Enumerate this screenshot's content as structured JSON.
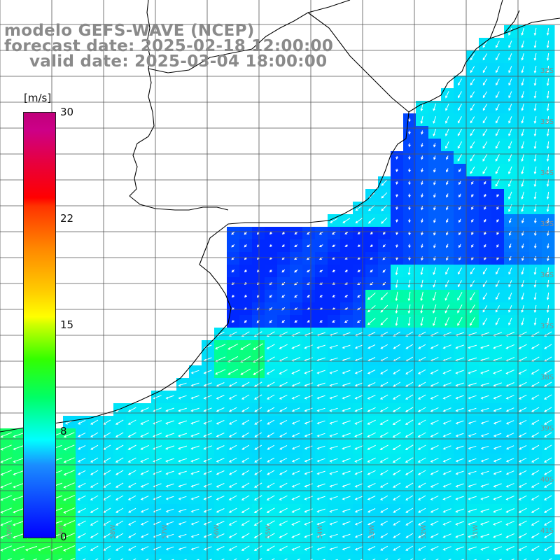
{
  "title": {
    "line1": "modelo GEFS-WAVE (NCEP)",
    "line2": "forecast date: 2025-02-18 12:00:00",
    "line3": "valid date: 2025-03-04 18:00:00"
  },
  "legend": {
    "unit": "[m/s]",
    "ticks": [
      "30",
      "22",
      "15",
      "8",
      "0"
    ],
    "tick_values": [
      30,
      22,
      15,
      8,
      0
    ]
  },
  "axes": {
    "lat_labels": [
      "32S",
      "33S",
      "34S",
      "35S",
      "36S",
      "37S",
      "38S",
      "39S",
      "40S",
      "41S"
    ],
    "lon_labels": [
      "60W",
      "59W",
      "58W",
      "57W",
      "56W",
      "55W",
      "54W",
      "53W",
      "52W",
      "51W"
    ]
  },
  "colors": {
    "land": "#ffffff",
    "coast": "#000000",
    "grid": "#555555",
    "arrows": "#ffffff",
    "label": "#8a8a8a",
    "wind_low": "#0000ff",
    "wind_mid": "#00ffff",
    "wind_high": "#00ff00"
  },
  "field": {
    "variable": "wind speed",
    "unit": "m/s"
  }
}
